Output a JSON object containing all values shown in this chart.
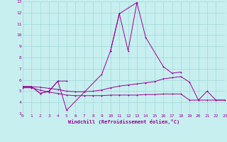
{
  "background_color": "#c8efef",
  "grid_color": "#a0d8d8",
  "line_color": "#990099",
  "xlabel": "Windchill (Refroidissement éolien,°C)",
  "ylim": [
    3,
    13
  ],
  "xlim": [
    0,
    23
  ],
  "yticks": [
    3,
    4,
    5,
    6,
    7,
    8,
    9,
    10,
    11,
    12,
    13
  ],
  "xticks": [
    0,
    1,
    2,
    3,
    4,
    5,
    6,
    7,
    8,
    9,
    10,
    11,
    12,
    13,
    14,
    15,
    16,
    17,
    18,
    19,
    20,
    21,
    22,
    23
  ],
  "curve_spike_x": [
    0,
    1,
    2,
    3,
    4,
    5,
    9,
    10,
    11,
    12,
    13,
    14,
    16,
    17,
    18
  ],
  "curve_spike_y": [
    5.4,
    5.4,
    4.8,
    5.0,
    5.9,
    3.3,
    6.5,
    8.6,
    11.9,
    8.6,
    12.9,
    9.8,
    7.2,
    6.6,
    6.7
  ],
  "curve_partial_x": [
    0,
    1,
    2,
    3,
    4,
    5,
    10,
    11,
    13
  ],
  "curve_partial_y": [
    5.4,
    5.4,
    4.8,
    5.0,
    5.9,
    5.9,
    8.6,
    11.9,
    12.9
  ],
  "curve_rise_x": [
    0,
    1,
    2,
    3,
    4,
    5,
    6,
    7,
    8,
    9,
    10,
    11,
    12,
    13,
    14,
    15,
    16,
    17,
    18,
    19,
    20,
    21,
    22,
    23
  ],
  "curve_rise_y": [
    5.4,
    5.4,
    5.35,
    5.25,
    5.15,
    5.0,
    4.95,
    4.95,
    5.0,
    5.1,
    5.3,
    5.45,
    5.55,
    5.65,
    5.75,
    5.85,
    6.1,
    6.2,
    6.3,
    5.8,
    4.2,
    5.0,
    4.2,
    4.2
  ],
  "curve_flat_x": [
    0,
    1,
    2,
    3,
    4,
    5,
    6,
    7,
    8,
    9,
    10,
    11,
    12,
    13,
    14,
    15,
    16,
    17,
    18,
    19,
    20,
    21,
    22,
    23
  ],
  "curve_flat_y": [
    5.3,
    5.3,
    5.1,
    4.9,
    4.8,
    4.65,
    4.6,
    4.6,
    4.6,
    4.6,
    4.65,
    4.65,
    4.65,
    4.65,
    4.7,
    4.7,
    4.75,
    4.75,
    4.75,
    4.2,
    4.2,
    4.2,
    4.2,
    4.2
  ]
}
